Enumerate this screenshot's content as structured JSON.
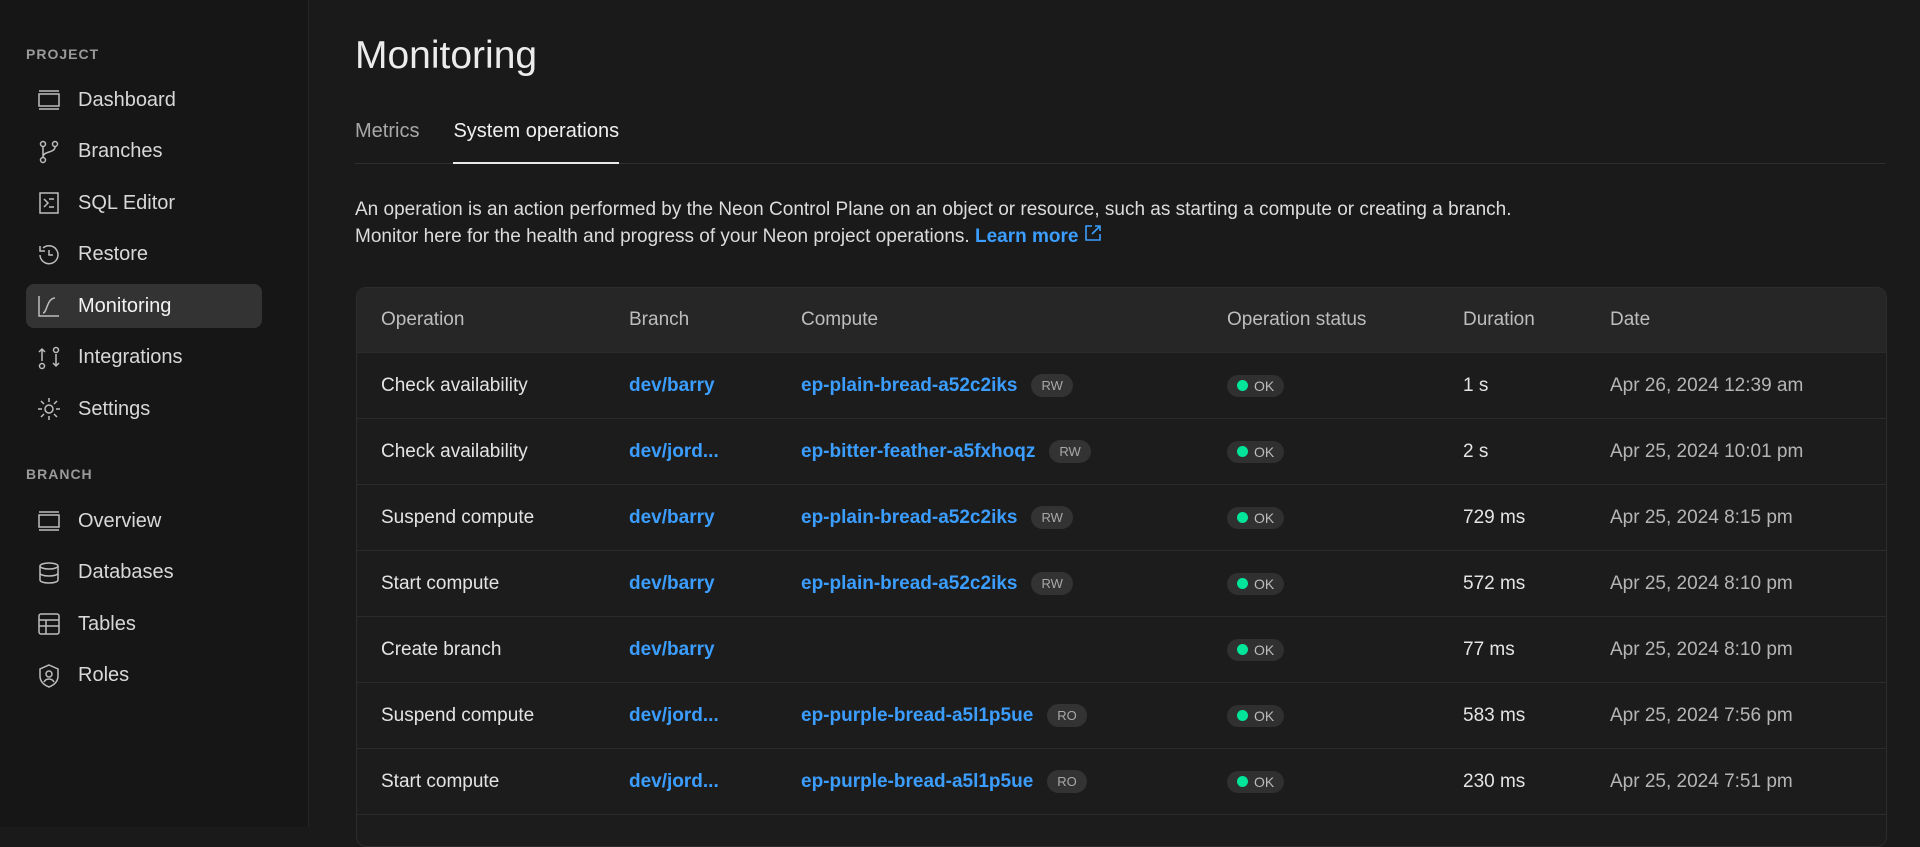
{
  "sidebar": {
    "project_label": "PROJECT",
    "project_items": [
      {
        "label": "Dashboard",
        "icon": "dashboard-icon"
      },
      {
        "label": "Branches",
        "icon": "branch-icon"
      },
      {
        "label": "SQL Editor",
        "icon": "sql-editor-icon"
      },
      {
        "label": "Restore",
        "icon": "restore-icon"
      },
      {
        "label": "Monitoring",
        "icon": "monitoring-icon",
        "active": true
      },
      {
        "label": "Integrations",
        "icon": "integrations-icon"
      },
      {
        "label": "Settings",
        "icon": "gear-icon"
      }
    ],
    "branch_label": "BRANCH",
    "branch_items": [
      {
        "label": "Overview",
        "icon": "overview-icon"
      },
      {
        "label": "Databases",
        "icon": "database-icon"
      },
      {
        "label": "Tables",
        "icon": "table-icon"
      },
      {
        "label": "Roles",
        "icon": "roles-icon"
      }
    ]
  },
  "main": {
    "title": "Monitoring",
    "tabs": [
      {
        "label": "Metrics"
      },
      {
        "label": "System operations",
        "active": true
      }
    ],
    "description": "An operation is an action performed by the Neon Control Plane on an object or resource, such as starting a compute or creating a branch. Monitor here for the health and progress of your Neon project operations.",
    "learn_more": "Learn more",
    "table": {
      "headers": [
        "Operation",
        "Branch",
        "Compute",
        "Operation status",
        "Duration",
        "Date"
      ],
      "rows": [
        {
          "operation": "Check availability",
          "branch": "dev/barry",
          "compute": "ep-plain-bread-a52c2iks",
          "mode": "RW",
          "status": "OK",
          "duration": "1 s",
          "date": "Apr 26, 2024 12:39 am"
        },
        {
          "operation": "Check availability",
          "branch": "dev/jord...",
          "compute": "ep-bitter-feather-a5fxhoqz",
          "mode": "RW",
          "status": "OK",
          "duration": "2 s",
          "date": "Apr 25, 2024 10:01 pm"
        },
        {
          "operation": "Suspend compute",
          "branch": "dev/barry",
          "compute": "ep-plain-bread-a52c2iks",
          "mode": "RW",
          "status": "OK",
          "duration": "729 ms",
          "date": "Apr 25, 2024 8:15 pm"
        },
        {
          "operation": "Start compute",
          "branch": "dev/barry",
          "compute": "ep-plain-bread-a52c2iks",
          "mode": "RW",
          "status": "OK",
          "duration": "572 ms",
          "date": "Apr 25, 2024 8:10 pm"
        },
        {
          "operation": "Create branch",
          "branch": "dev/barry",
          "compute": "",
          "mode": "",
          "status": "OK",
          "duration": "77 ms",
          "date": "Apr 25, 2024 8:10 pm"
        },
        {
          "operation": "Suspend compute",
          "branch": "dev/jord...",
          "compute": "ep-purple-bread-a5l1p5ue",
          "mode": "RO",
          "status": "OK",
          "duration": "583 ms",
          "date": "Apr 25, 2024 7:56 pm"
        },
        {
          "operation": "Start compute",
          "branch": "dev/jord...",
          "compute": "ep-purple-bread-a5l1p5ue",
          "mode": "RO",
          "status": "OK",
          "duration": "230 ms",
          "date": "Apr 25, 2024 7:51 pm"
        }
      ]
    }
  },
  "colors": {
    "accent": "#3b9eff",
    "ok": "#00e599",
    "background": "#1a1a1a"
  }
}
